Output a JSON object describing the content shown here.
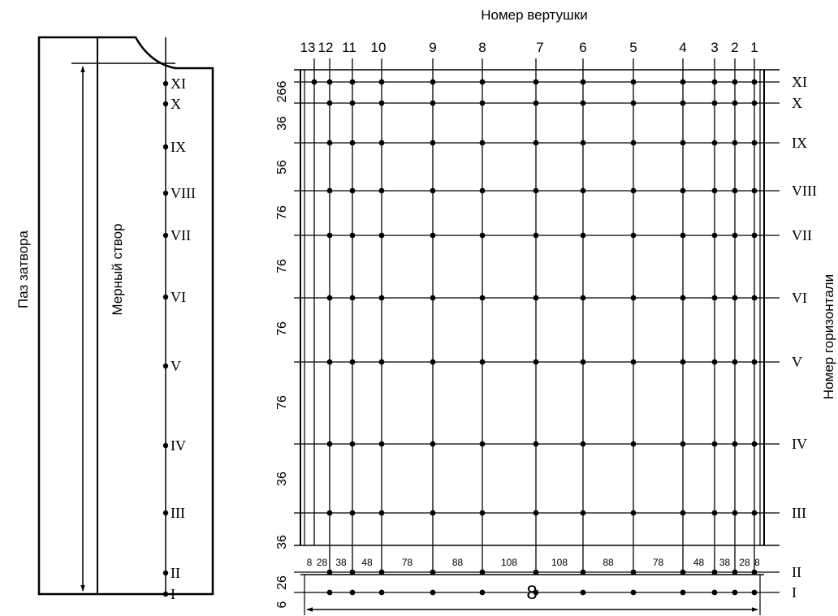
{
  "left_panel": {
    "gate_groove_label": "Паз затвора",
    "measuring_section_label": "Мерный створ",
    "point_labels": [
      "XI",
      "X",
      "IX",
      "VIII",
      "VII",
      "VI",
      "V",
      "IV",
      "III",
      "II",
      "I"
    ]
  },
  "grid": {
    "top_title": "Номер вертушки",
    "right_title": "Номер горизонтали",
    "vertical_numbers": [
      "13",
      "12",
      "11",
      "10",
      "9",
      "8",
      "7",
      "6",
      "5",
      "4",
      "3",
      "2",
      "1"
    ],
    "horizontal_labels": [
      "XI",
      "X",
      "IX",
      "VIII",
      "VII",
      "VI",
      "V",
      "IV",
      "III",
      "II",
      "I"
    ],
    "left_spacing_labels": [
      "266",
      "36",
      "56",
      "76",
      "76",
      "76",
      "76",
      "36",
      "36",
      "26",
      "6"
    ],
    "bottom_spacing_labels": [
      "8",
      "28",
      "38",
      "48",
      "78",
      "88",
      "108",
      "108",
      "88",
      "78",
      "48",
      "38",
      "28",
      "8"
    ],
    "total_width_label": "8"
  }
}
